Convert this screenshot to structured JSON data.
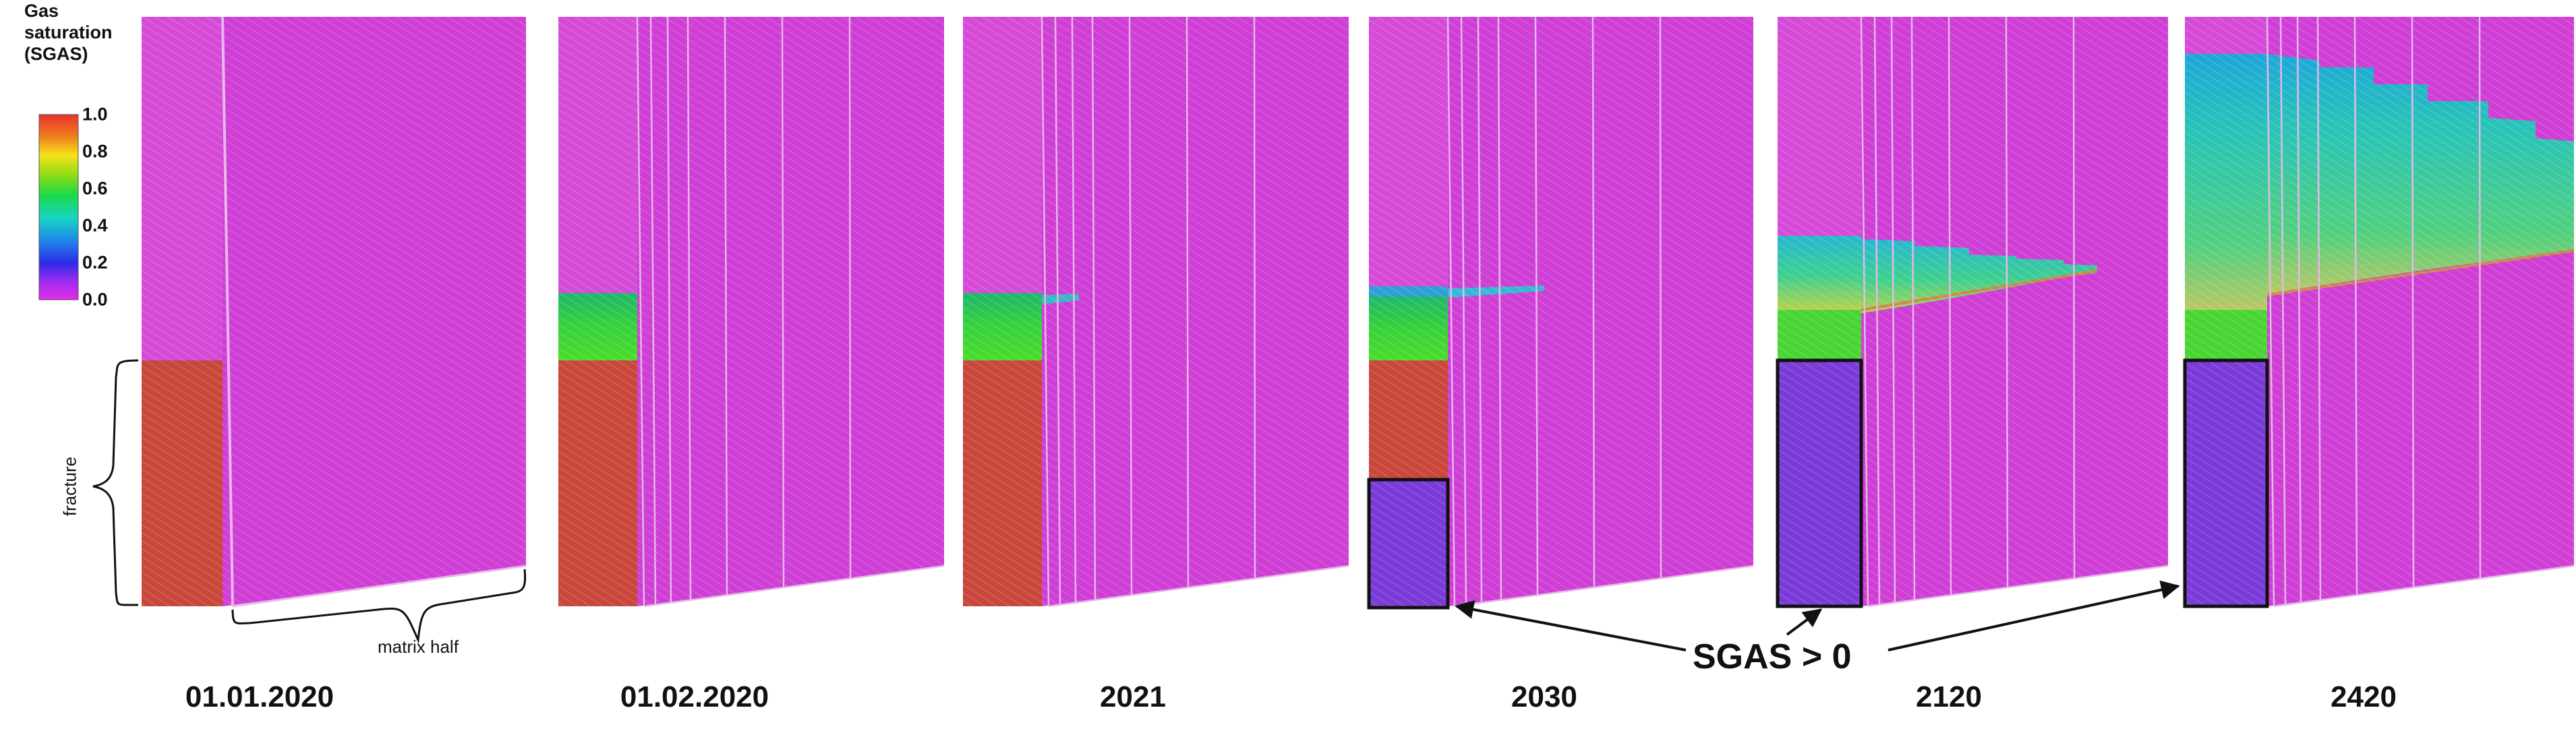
{
  "colorbar": {
    "title_lines": [
      "Gas",
      "saturation",
      "(SGAS)"
    ],
    "ticks": [
      "1.0",
      "0.8",
      "0.6",
      "0.4",
      "0.2",
      "0.0"
    ],
    "colors": [
      "#e8322b",
      "#f07f1e",
      "#f5e21a",
      "#8bdc17",
      "#19d84d",
      "#18d6c4",
      "#1f86e8",
      "#2c2ce6",
      "#9b2cf0",
      "#e42ce6"
    ]
  },
  "annotations": {
    "fracture": "fracture",
    "matrix_half": "matrix half",
    "sgas_label": "SGAS > 0"
  },
  "panels": [
    {
      "date": "01.01.2020"
    },
    {
      "date": "01.02.2020"
    },
    {
      "date": "2021"
    },
    {
      "date": "2030"
    },
    {
      "date": "2120"
    },
    {
      "date": "2420"
    }
  ],
  "colors": {
    "magenta": "#d43fd6",
    "red": "#c8463a",
    "green": "#37cf4a",
    "purple": "#7a3bd8",
    "teal": "#2fbcc9"
  }
}
